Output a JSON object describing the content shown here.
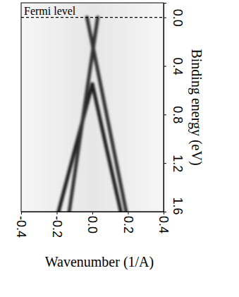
{
  "chart_data": {
    "type": "line",
    "x_label": "Wavenumber (1/A)",
    "y_label": "Binding energy (eV)",
    "xlim": [
      -0.4,
      0.4
    ],
    "xticks": [
      -0.4,
      -0.2,
      {
        "value": 0,
        "label": "0.0"
      },
      0.2,
      0.4
    ],
    "ylim": [
      -0.12,
      1.6
    ],
    "yticks": [
      {
        "value": 0,
        "label": "0.0"
      },
      0.4,
      0.8,
      1.2,
      1.6
    ],
    "annotations": [
      {
        "text": "Fermi level",
        "y": 0
      }
    ],
    "series": [
      {
        "color": "#1a1a1a",
        "x": [
          -0.19,
          -0.1,
          0.0
        ],
        "values": [
          1.6,
          1.1,
          0.55
        ]
      },
      {
        "color": "#1a1a1a",
        "x": [
          0.16,
          0.08,
          0.0
        ],
        "values": [
          1.6,
          1.08,
          0.55
        ]
      },
      {
        "color": "#333333",
        "x": [
          -0.13,
          -0.05,
          0.03
        ],
        "values": [
          1.6,
          0.8,
          0.0
        ]
      },
      {
        "color": "#333333",
        "x": [
          0.19,
          0.08,
          -0.03
        ],
        "values": [
          1.6,
          0.8,
          0.0
        ]
      }
    ]
  }
}
